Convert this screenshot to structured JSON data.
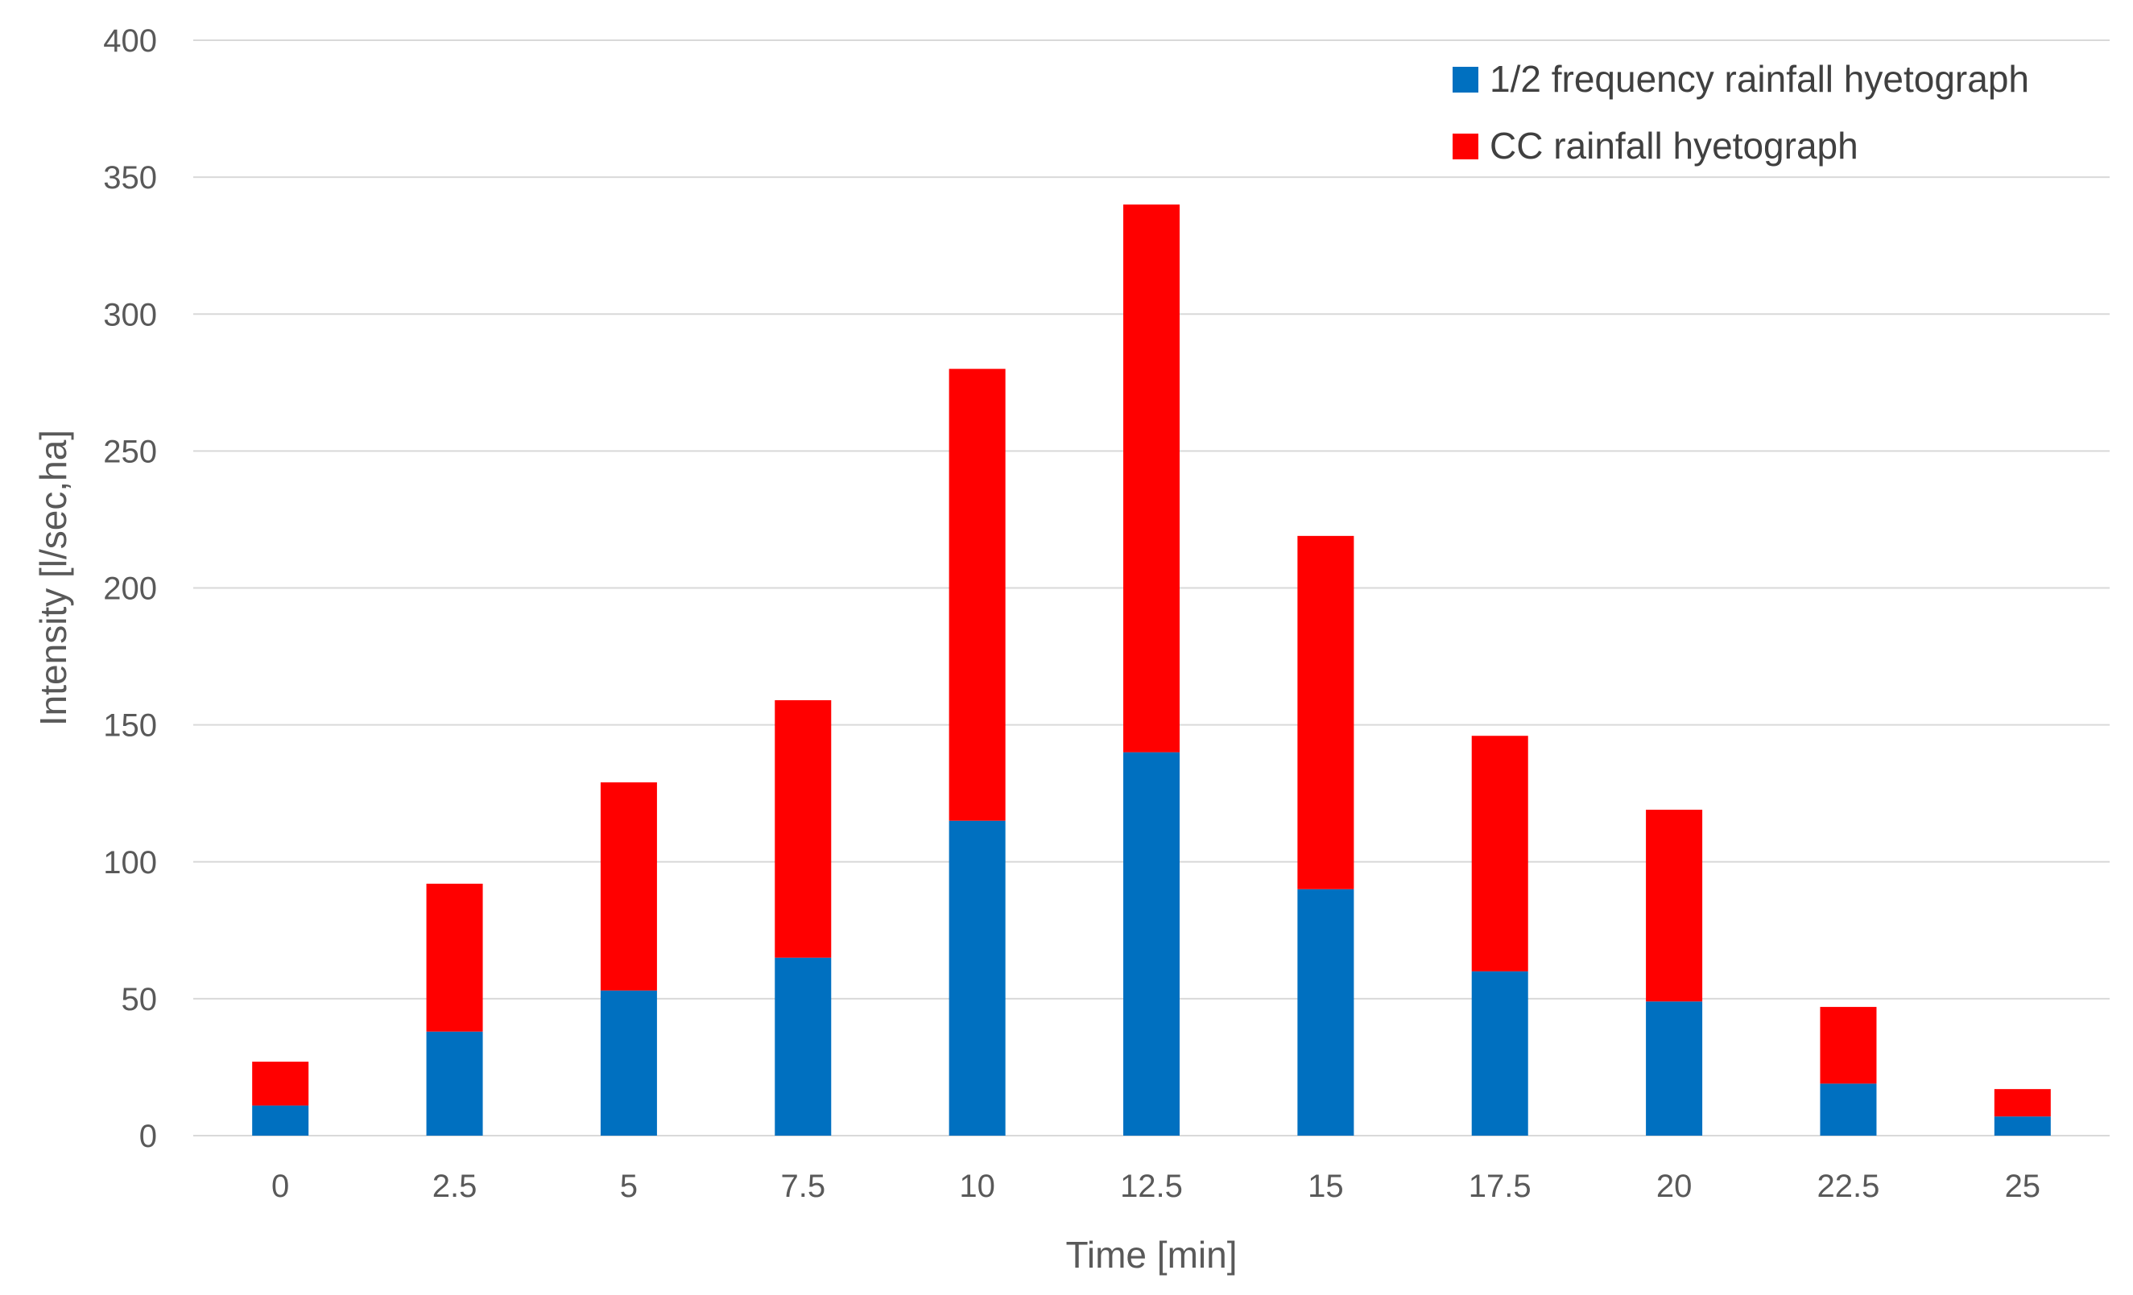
{
  "chart_data": {
    "type": "bar",
    "stacked": true,
    "title": "",
    "xlabel": "Time [min]",
    "ylabel": "Intensity [l/sec,ha]",
    "ylim": [
      0,
      400
    ],
    "yticks": [
      0,
      50,
      100,
      150,
      200,
      250,
      300,
      350,
      400
    ],
    "grid": true,
    "legend_position": "top-right",
    "categories": [
      "0",
      "2.5",
      "5",
      "7.5",
      "10",
      "12.5",
      "15",
      "17.5",
      "20",
      "22.5",
      "25"
    ],
    "series": [
      {
        "name": "1/2 frequency rainfall hyetograph",
        "color": "#0070C0",
        "values": [
          11,
          38,
          53,
          65,
          115,
          140,
          90,
          60,
          49,
          19,
          7
        ]
      },
      {
        "name": "CC rainfall hyetograph",
        "color": "#FF0000",
        "values": [
          16,
          54,
          76,
          94,
          165,
          200,
          129,
          86,
          70,
          28,
          10
        ]
      }
    ]
  }
}
